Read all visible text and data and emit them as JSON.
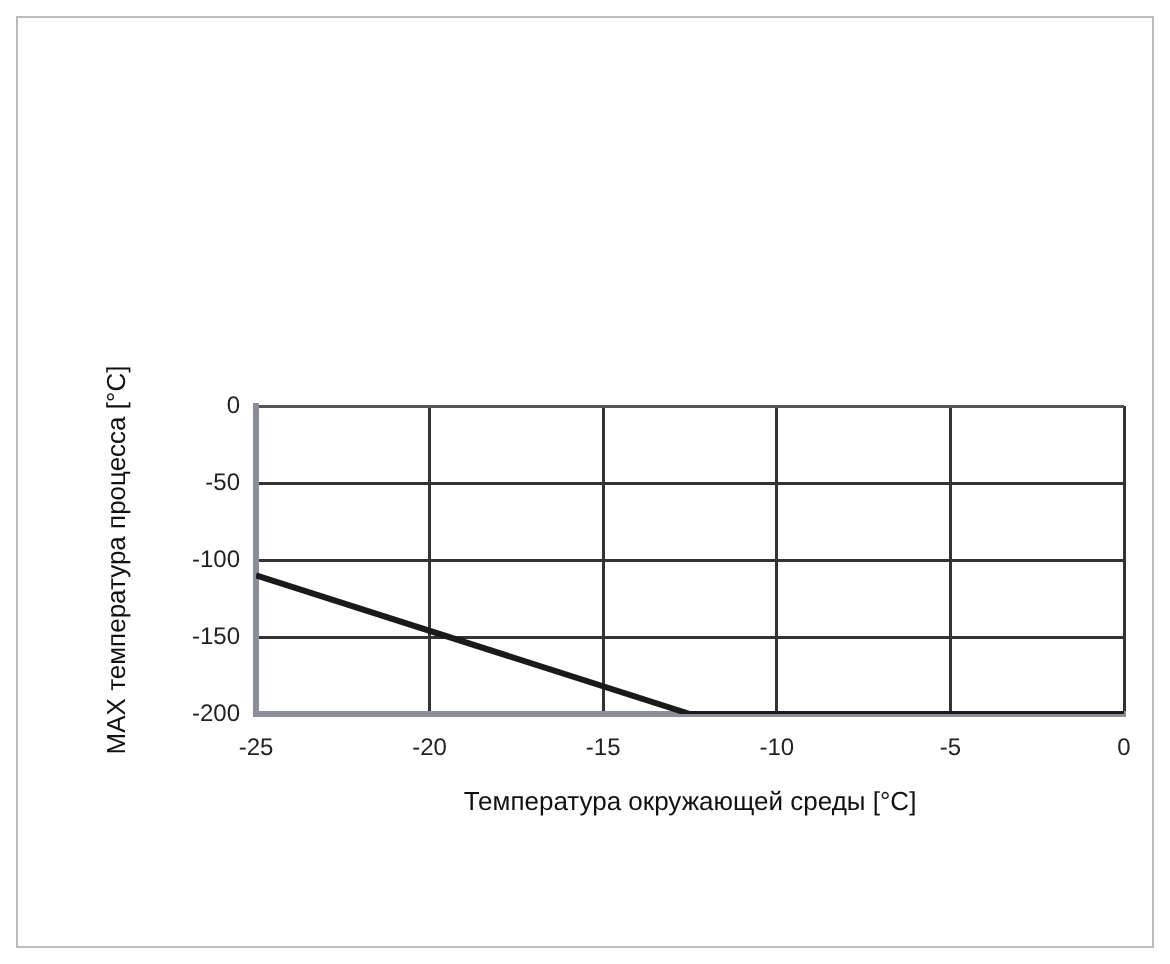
{
  "chart_data": {
    "type": "line",
    "xlabel": "Температура окружающей среды [°C]",
    "ylabel": "MAX температура процесса [°C]",
    "x": [
      -25,
      -12.5,
      0
    ],
    "values": [
      -110,
      -200,
      -200
    ],
    "color": "#1a1a1a",
    "xlim": [
      -25,
      0
    ],
    "ylim": [
      -200,
      0
    ],
    "xticks": [
      -25,
      -20,
      -15,
      -10,
      -5,
      0
    ],
    "yticks": [
      -200,
      -150,
      -100,
      -50,
      0
    ],
    "grid": true,
    "marker": "none",
    "line_style": "solid"
  }
}
